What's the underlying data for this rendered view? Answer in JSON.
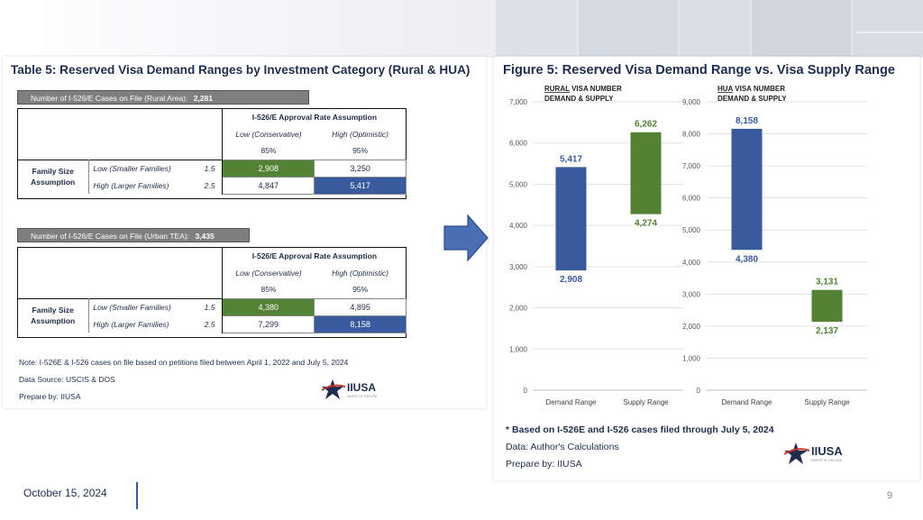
{
  "footer": {
    "date": "October 15, 2024",
    "page": "9"
  },
  "table": {
    "title": "Table 5: Reserved Visa Demand Ranges by Investment Category (Rural & HUA)",
    "sections": [
      {
        "cases_label": "Number of I-526/E Cases on File (Rural Area):",
        "cases_value": "2,281",
        "header": "I-526/E Approval Rate Assumption",
        "col_low": "Low (Conservative)",
        "col_high": "High (Optimistic)",
        "pct_low": "85%",
        "pct_high": "95%",
        "family_label_1": "Family Size",
        "family_label_2": "Assumption",
        "row_low_label": "Low (Smaller Families)",
        "row_low_mult": "1.5",
        "row_high_label": "High (Larger Families)",
        "row_high_mult": "2.5",
        "v_ll": "2,908",
        "v_lh": "3,250",
        "v_hl": "4,847",
        "v_hh": "5,417"
      },
      {
        "cases_label": "Number of I-526/E Cases on File (Urban TEA):",
        "cases_value": "3,435",
        "header": "I-526/E Approval Rate Assumption",
        "col_low": "Low (Conservative)",
        "col_high": "High (Optimistic)",
        "pct_low": "85%",
        "pct_high": "95%",
        "family_label_1": "Family Size",
        "family_label_2": "Assumption",
        "row_low_label": "Low (Smaller Families)",
        "row_low_mult": "1.5",
        "row_high_label": "High (Larger Families)",
        "row_high_mult": "2.5",
        "v_ll": "4,380",
        "v_lh": "4,895",
        "v_hl": "7,299",
        "v_hh": "8,158"
      }
    ],
    "note": "Note: I-526E & I-526 cases on file based on petitions filed between April 1, 2022 and July 5, 2024",
    "source": "Data Source: USCIS & DOS",
    "prepared": "Prepare by: IIUSA"
  },
  "figure": {
    "title": "Figure 5: Reserved Visa Demand Range vs. Visa Supply Range",
    "note": "* Based on I-526E and I-526 cases filed through July 5, 2024",
    "data_source": "Data: Author's Calculations",
    "prepared": "Prepare by: IIUSA"
  },
  "logo": {
    "text": "IIUSA",
    "tagline": "INVEST IN THE USA"
  },
  "colors": {
    "navy": "#1f2d4f",
    "blue": "#3a5a9e",
    "green": "#548235"
  },
  "chart_data": [
    {
      "type": "bar",
      "subtype": "floating-range",
      "title_underlined": "RURAL",
      "title_rest_1": " VISA NUMBER",
      "title_line2": "DEMAND & SUPPLY",
      "categories": [
        "Demand Range",
        "Supply Range"
      ],
      "ranges": [
        {
          "category": "Demand Range",
          "low": 2908,
          "high": 5417,
          "low_label": "2,908",
          "high_label": "5,417",
          "color": "#3a5a9e"
        },
        {
          "category": "Supply Range",
          "low": 4274,
          "high": 6262,
          "low_label": "4,274",
          "high_label": "6,262",
          "color": "#548235"
        }
      ],
      "ylim": [
        0,
        7000
      ],
      "yticks": [
        0,
        1000,
        2000,
        3000,
        4000,
        5000,
        6000,
        7000
      ],
      "ytick_labels": [
        "0",
        "1,000",
        "2,000",
        "3,000",
        "4,000",
        "5,000",
        "6,000",
        "7,000"
      ],
      "grid": true
    },
    {
      "type": "bar",
      "subtype": "floating-range",
      "title_underlined": "HUA",
      "title_rest_1": " VISA NUMBER",
      "title_line2": "DEMAND & SUPPLY",
      "categories": [
        "Demand Range",
        "Supply Range"
      ],
      "ranges": [
        {
          "category": "Demand Range",
          "low": 4380,
          "high": 8158,
          "low_label": "4,380",
          "high_label": "8,158",
          "color": "#3a5a9e"
        },
        {
          "category": "Supply Range",
          "low": 2137,
          "high": 3131,
          "low_label": "2,137",
          "high_label": "3,131",
          "color": "#548235"
        }
      ],
      "ylim": [
        0,
        9000
      ],
      "yticks": [
        0,
        1000,
        2000,
        3000,
        4000,
        5000,
        6000,
        7000,
        8000,
        9000
      ],
      "ytick_labels": [
        "0",
        "1,000",
        "2,000",
        "3,000",
        "4,000",
        "5,000",
        "6,000",
        "7,000",
        "8,000",
        "9,000"
      ],
      "grid": true
    }
  ]
}
